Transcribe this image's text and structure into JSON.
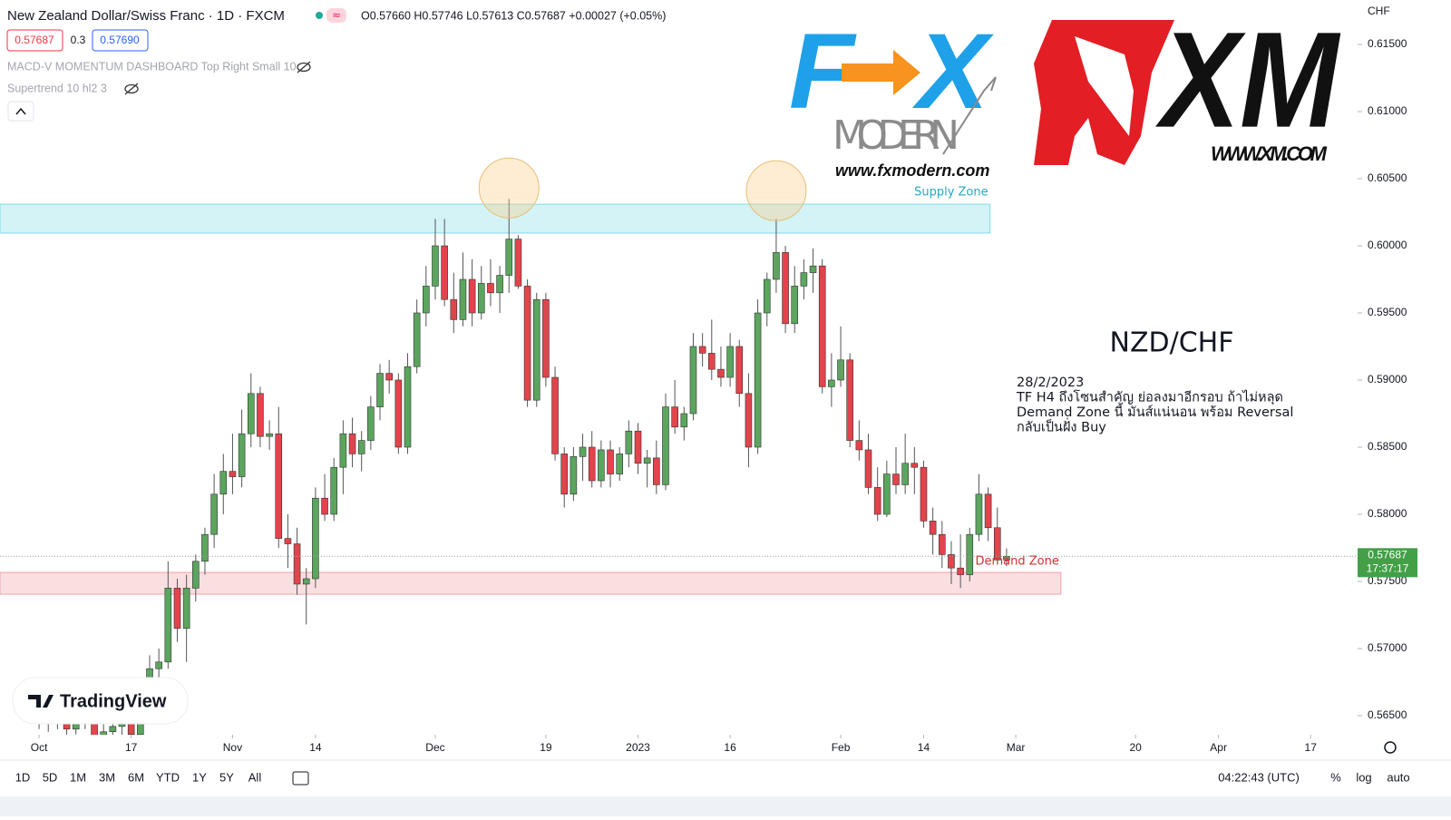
{
  "header": {
    "title": "New Zealand Dollar/Swiss Franc · 1D · FXCM",
    "ohlc": "O0.57660 H0.57746 L0.57613 C0.57687 +0.00027 (+0.05%)",
    "bid": "0.57687",
    "spread": "0.3",
    "ask": "0.57690",
    "indicators": [
      "MACD-V MOMENTUM DASHBOARD Top Right Small 10",
      "Supertrend 10 hl2 3"
    ],
    "currency": "CHF"
  },
  "logos": {
    "fx": "FX",
    "modern": "MODERN",
    "fx_url": "www.fxmodern.com",
    "xm": "XM",
    "xm_url": "WWW.XM.COM",
    "watermark": "TradingView"
  },
  "chart_data": {
    "type": "candlestick",
    "up_color": "#5ba55e",
    "down_color": "#e2444c",
    "xlim": [
      -4.24,
      142.9
    ],
    "xticks": [
      {
        "value": 0,
        "label": "Oct"
      },
      {
        "value": 10,
        "label": "17"
      },
      {
        "value": 21,
        "label": "Nov"
      },
      {
        "value": 30,
        "label": "14"
      },
      {
        "value": 43,
        "label": "Dec"
      },
      {
        "value": 55,
        "label": "19"
      },
      {
        "value": 65,
        "label": "2023"
      },
      {
        "value": 75,
        "label": "16"
      },
      {
        "value": 87,
        "label": "Feb"
      },
      {
        "value": 96,
        "label": "14"
      },
      {
        "value": 106,
        "label": "Mar"
      },
      {
        "value": 119,
        "label": "20"
      },
      {
        "value": 128,
        "label": "Apr"
      },
      {
        "value": 138,
        "label": "17"
      }
    ],
    "ylim": [
      0.56358,
      0.61831
    ],
    "yticks": [
      {
        "value": 0.565,
        "label": "0.56500"
      },
      {
        "value": 0.57,
        "label": "0.57000"
      },
      {
        "value": 0.575,
        "label": "0.57500"
      },
      {
        "value": 0.58,
        "label": "0.58000"
      },
      {
        "value": 0.585,
        "label": "0.58500"
      },
      {
        "value": 0.59,
        "label": "0.59000"
      },
      {
        "value": 0.595,
        "label": "0.59500"
      },
      {
        "value": 0.6,
        "label": "0.60000"
      },
      {
        "value": 0.605,
        "label": "0.60500"
      },
      {
        "value": 0.61,
        "label": "0.61000"
      },
      {
        "value": 0.615,
        "label": "0.61500"
      }
    ],
    "open": [
      0.5655,
      0.566,
      0.5645,
      0.565,
      0.564,
      0.5655,
      0.5648,
      0.5632,
      0.5638,
      0.5642,
      0.5646,
      0.5636,
      0.5652,
      0.5685,
      0.569,
      0.5745,
      0.5715,
      0.5745,
      0.5765,
      0.5785,
      0.5815,
      0.5832,
      0.5828,
      0.586,
      0.589,
      0.5858,
      0.586,
      0.5782,
      0.5778,
      0.5748,
      0.5752,
      0.5812,
      0.58,
      0.5835,
      0.586,
      0.5845,
      0.5855,
      0.588,
      0.5905,
      0.59,
      0.585,
      0.591,
      0.595,
      0.597,
      0.6,
      0.596,
      0.5945,
      0.5975,
      0.595,
      0.5972,
      0.5965,
      0.5978,
      0.6005,
      0.597,
      0.5885,
      0.596,
      0.5902,
      0.5845,
      0.5815,
      0.5843,
      0.585,
      0.5825,
      0.5848,
      0.583,
      0.5845,
      0.5862,
      0.5838,
      0.5842,
      0.5822,
      0.588,
      0.5865,
      0.5875,
      0.5925,
      0.592,
      0.5908,
      0.5902,
      0.5925,
      0.589,
      0.585,
      0.595,
      0.5975,
      0.5995,
      0.5942,
      0.597,
      0.598,
      0.5985,
      0.5895,
      0.59,
      0.5915,
      0.5855,
      0.5848,
      0.582,
      0.58,
      0.583,
      0.5822,
      0.5838,
      0.5835,
      0.5795,
      0.5785,
      0.577,
      0.576,
      0.5755,
      0.5785,
      0.5815,
      0.579,
      0.5766
    ],
    "high": [
      0.5672,
      0.5668,
      0.5665,
      0.566,
      0.5662,
      0.5666,
      0.5655,
      0.5645,
      0.565,
      0.5655,
      0.5652,
      0.566,
      0.5695,
      0.57,
      0.5765,
      0.5752,
      0.5755,
      0.577,
      0.579,
      0.583,
      0.5845,
      0.586,
      0.5878,
      0.5905,
      0.5895,
      0.587,
      0.588,
      0.58,
      0.579,
      0.576,
      0.582,
      0.583,
      0.5842,
      0.587,
      0.5872,
      0.5862,
      0.5888,
      0.5912,
      0.5915,
      0.5905,
      0.592,
      0.596,
      0.5985,
      0.602,
      0.602,
      0.598,
      0.5995,
      0.599,
      0.5985,
      0.599,
      0.5985,
      0.6035,
      0.6008,
      0.5975,
      0.5965,
      0.5965,
      0.591,
      0.585,
      0.585,
      0.586,
      0.5862,
      0.5855,
      0.5855,
      0.585,
      0.587,
      0.5868,
      0.5848,
      0.5855,
      0.589,
      0.59,
      0.588,
      0.5935,
      0.5935,
      0.5945,
      0.5925,
      0.5935,
      0.593,
      0.5905,
      0.596,
      0.598,
      0.602,
      0.6,
      0.5985,
      0.599,
      0.5998,
      0.599,
      0.592,
      0.594,
      0.592,
      0.587,
      0.586,
      0.5835,
      0.584,
      0.585,
      0.586,
      0.585,
      0.584,
      0.5805,
      0.5795,
      0.578,
      0.5785,
      0.579,
      0.583,
      0.582,
      0.5805,
      0.57746
    ],
    "low": [
      0.564,
      0.5638,
      0.564,
      0.5632,
      0.5636,
      0.564,
      0.5625,
      0.5622,
      0.563,
      0.5632,
      0.563,
      0.5632,
      0.565,
      0.5672,
      0.5685,
      0.5705,
      0.569,
      0.5735,
      0.5755,
      0.5775,
      0.58,
      0.5815,
      0.582,
      0.585,
      0.585,
      0.5848,
      0.5775,
      0.576,
      0.574,
      0.5718,
      0.5745,
      0.5795,
      0.5795,
      0.5815,
      0.5835,
      0.5832,
      0.5848,
      0.587,
      0.589,
      0.5845,
      0.5845,
      0.5905,
      0.594,
      0.596,
      0.5955,
      0.5935,
      0.594,
      0.594,
      0.5945,
      0.5955,
      0.595,
      0.5965,
      0.5968,
      0.588,
      0.588,
      0.5895,
      0.584,
      0.5805,
      0.581,
      0.5825,
      0.582,
      0.582,
      0.582,
      0.5825,
      0.5835,
      0.583,
      0.582,
      0.5815,
      0.5818,
      0.586,
      0.5855,
      0.587,
      0.591,
      0.59,
      0.5895,
      0.5895,
      0.588,
      0.5835,
      0.5845,
      0.594,
      0.5965,
      0.5935,
      0.5935,
      0.596,
      0.5965,
      0.589,
      0.588,
      0.5895,
      0.585,
      0.584,
      0.5815,
      0.5795,
      0.5798,
      0.5815,
      0.5815,
      0.5815,
      0.579,
      0.577,
      0.576,
      0.5748,
      0.5745,
      0.575,
      0.578,
      0.578,
      0.5765,
      0.57613
    ],
    "close": [
      0.566,
      0.5645,
      0.565,
      0.564,
      0.5655,
      0.5648,
      0.5632,
      0.5638,
      0.5642,
      0.5646,
      0.5636,
      0.5652,
      0.5685,
      0.569,
      0.5745,
      0.5715,
      0.5745,
      0.5765,
      0.5785,
      0.5815,
      0.5832,
      0.5828,
      0.586,
      0.589,
      0.5858,
      0.586,
      0.5782,
      0.5778,
      0.5748,
      0.5752,
      0.5812,
      0.58,
      0.5835,
      0.586,
      0.5845,
      0.5855,
      0.588,
      0.5905,
      0.59,
      0.585,
      0.591,
      0.595,
      0.597,
      0.6,
      0.596,
      0.5945,
      0.5975,
      0.595,
      0.5972,
      0.5965,
      0.5978,
      0.6005,
      0.597,
      0.5885,
      0.596,
      0.5902,
      0.5845,
      0.5815,
      0.5843,
      0.585,
      0.5825,
      0.5848,
      0.583,
      0.5845,
      0.5862,
      0.5838,
      0.5842,
      0.5822,
      0.588,
      0.5865,
      0.5875,
      0.5925,
      0.592,
      0.5908,
      0.5902,
      0.5925,
      0.589,
      0.585,
      0.595,
      0.5975,
      0.5995,
      0.5942,
      0.597,
      0.598,
      0.5985,
      0.5895,
      0.59,
      0.5915,
      0.5855,
      0.5848,
      0.582,
      0.58,
      0.583,
      0.5822,
      0.5838,
      0.5835,
      0.5795,
      0.5785,
      0.577,
      0.576,
      0.5755,
      0.5785,
      0.5815,
      0.579,
      0.5766,
      0.57687
    ],
    "zones": [
      {
        "label": "Supply Zone",
        "top": 0.6031,
        "bottom": 0.60095,
        "end": 103.2,
        "color": "#80dee9"
      },
      {
        "label": "Demand Zone",
        "top": 0.57567,
        "bottom": 0.57405,
        "end": 110.9,
        "color": "#f2a2aa"
      }
    ],
    "highlights": [
      {
        "x": 51,
        "y": 0.60431
      },
      {
        "x": 80,
        "y": 0.6041
      }
    ],
    "last_price": 0.57687,
    "countdown": "17:37:17",
    "last_color": "#43a047",
    "annotation": {
      "title": "NZD/CHF",
      "lines": [
        "28/2/2023",
        "TF H4 ถึงโซนสำคัญ ย่อลงมาอีกรอบ ถ้าไม่หลุด",
        "Demand Zone นี้ มันส์แน่นอน พร้อม Reversal",
        "กลับเป็นฝั่ง Buy"
      ]
    }
  },
  "toolbar": {
    "ranges": [
      "1D",
      "5D",
      "1M",
      "3M",
      "6M",
      "YTD",
      "1Y",
      "5Y",
      "All"
    ],
    "clock": "04:22:43 (UTC)",
    "options": [
      "%",
      "log",
      "auto"
    ]
  }
}
